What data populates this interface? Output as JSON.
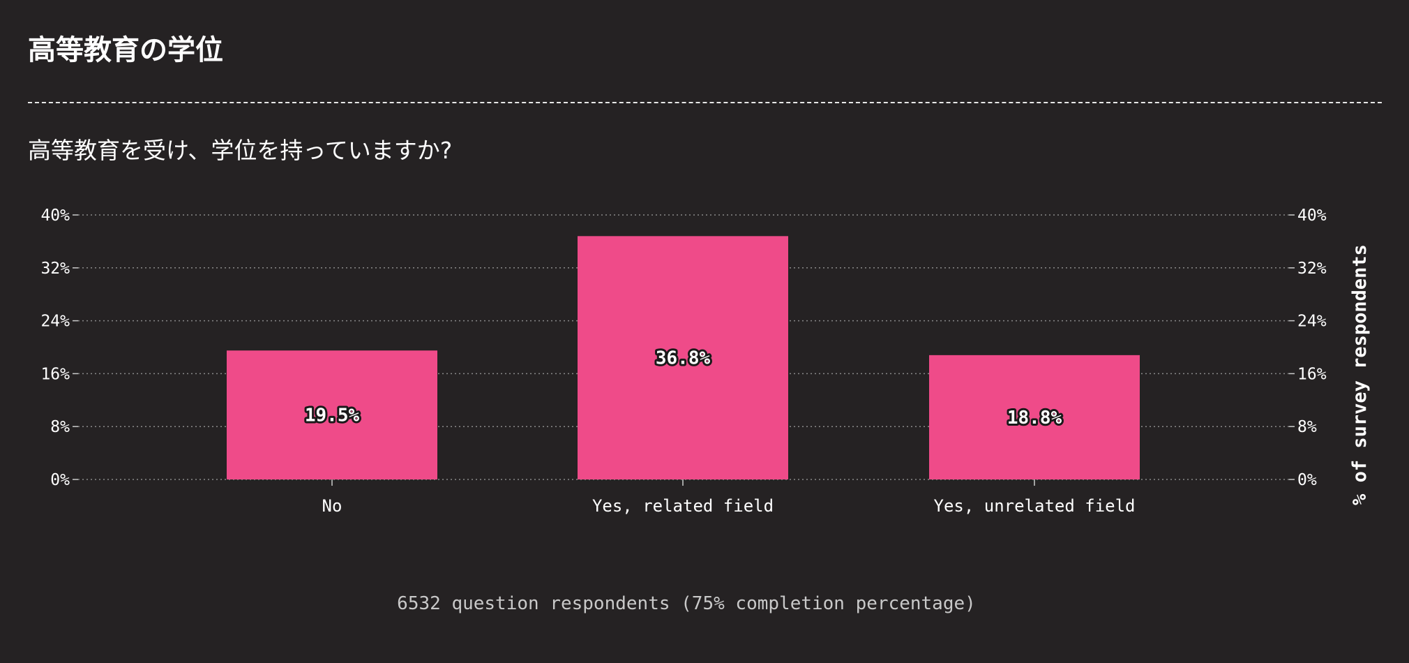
{
  "page": {
    "title": "高等教育の学位",
    "question": "高等教育を受け、学位を持っていますか?",
    "footnote": "6532 question respondents (75% completion percentage)"
  },
  "colors": {
    "background": "#252223",
    "bar": "#ef4b89",
    "text": "#ffffff",
    "grid": "#8a8a8a"
  },
  "chart_data": {
    "type": "bar",
    "categories": [
      "No",
      "Yes, related field",
      "Yes, unrelated field"
    ],
    "values": [
      19.5,
      36.8,
      18.8
    ],
    "value_labels": [
      "19.5%",
      "36.8%",
      "18.8%"
    ],
    "ylabel": "% of survey respondents",
    "ylim": [
      0,
      40
    ],
    "yticks": [
      0,
      8,
      16,
      24,
      32,
      40
    ],
    "ytick_labels": [
      "0%",
      "8%",
      "16%",
      "24%",
      "32%",
      "40%"
    ],
    "grid": true,
    "legend": "none",
    "secondary_y_axis": true
  }
}
